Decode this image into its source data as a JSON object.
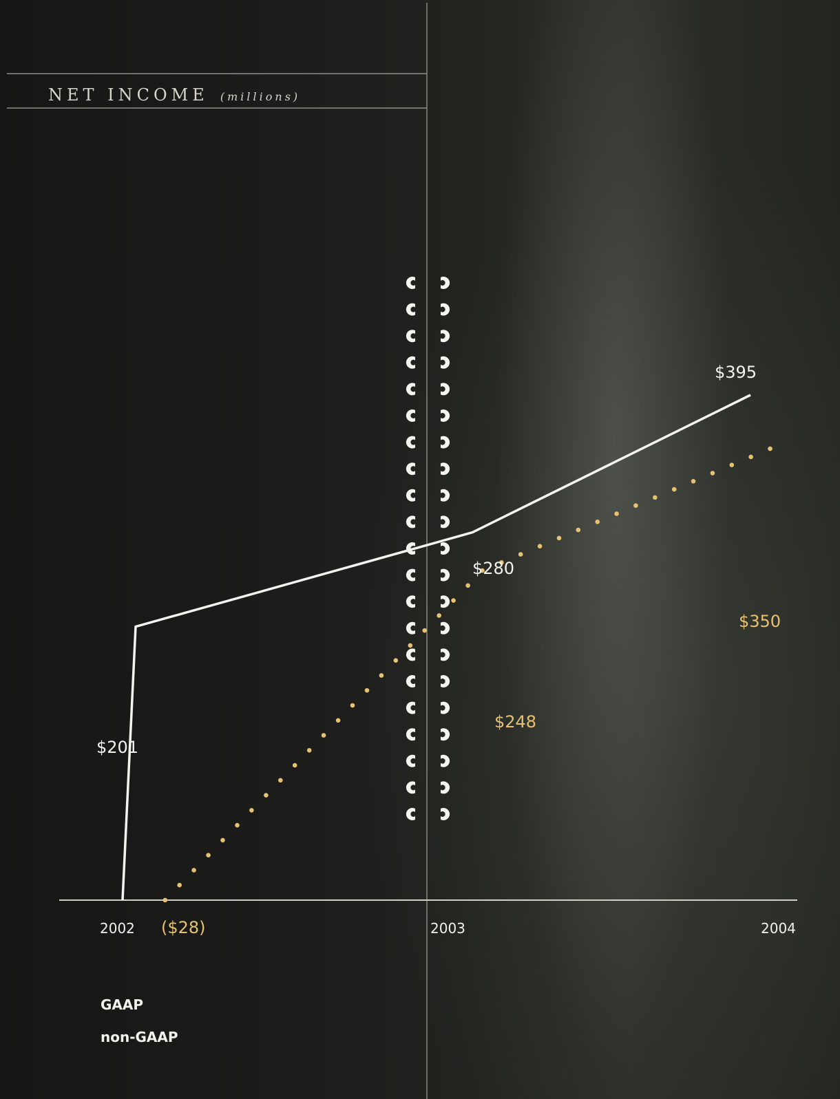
{
  "title": "NET INCOME",
  "subtitle": "(millions)",
  "chart_data": {
    "type": "line",
    "title": "NET INCOME (millions)",
    "x": [
      "2002",
      "2003",
      "2004"
    ],
    "xlabel": "",
    "ylabel": "",
    "ylim": [
      -28,
      420
    ],
    "grid": false,
    "legend_position": "bottom-left",
    "series": [
      {
        "name": "GAAP",
        "style": "solid",
        "color": "#f4f3ee",
        "points": [
          {
            "x": 2002.0,
            "y": -28,
            "label": ""
          },
          {
            "x": 2002.04,
            "y": 201,
            "label": "$201"
          },
          {
            "x": 2003.07,
            "y": 280,
            "label": "$280"
          },
          {
            "x": 2003.92,
            "y": 395,
            "label": "$395"
          }
        ]
      },
      {
        "name": "non-GAAP",
        "style": "dotted",
        "color": "#e7c272",
        "points": [
          {
            "x": 2002.13,
            "y": -28,
            "label": "($28)"
          },
          {
            "x": 2003.1,
            "y": 248,
            "label": "$248"
          },
          {
            "x": 2003.98,
            "y": 350,
            "label": "$350"
          }
        ]
      }
    ]
  }
}
